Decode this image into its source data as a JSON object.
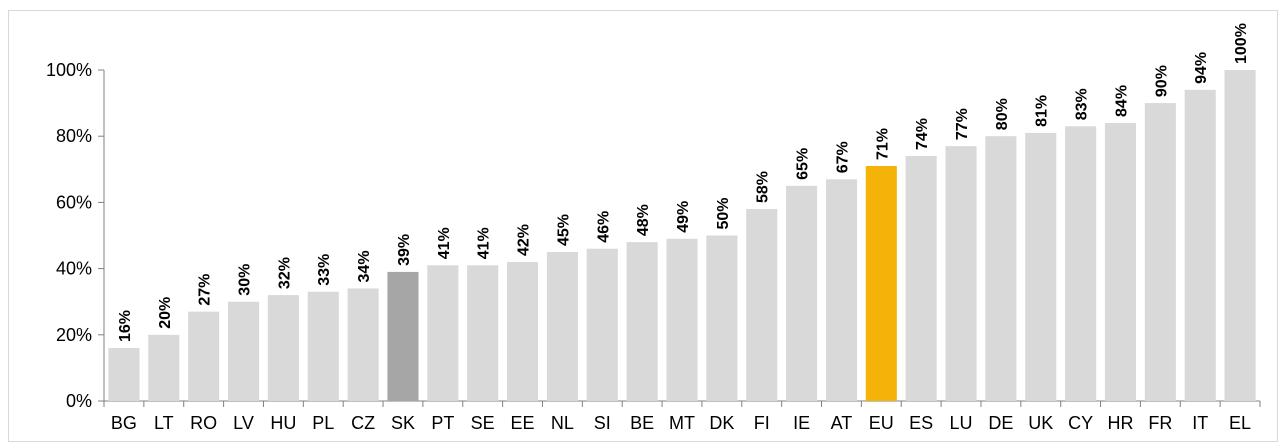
{
  "chart_data": {
    "type": "bar",
    "categories": [
      "BG",
      "LT",
      "RO",
      "LV",
      "HU",
      "PL",
      "CZ",
      "SK",
      "PT",
      "SE",
      "EE",
      "NL",
      "SI",
      "BE",
      "MT",
      "DK",
      "FI",
      "IE",
      "AT",
      "EU",
      "ES",
      "LU",
      "DE",
      "UK",
      "CY",
      "HR",
      "FR",
      "IT",
      "EL"
    ],
    "values": [
      16,
      20,
      27,
      30,
      32,
      33,
      34,
      39,
      41,
      41,
      42,
      45,
      46,
      48,
      49,
      50,
      58,
      65,
      67,
      71,
      74,
      77,
      80,
      81,
      83,
      84,
      90,
      94,
      100
    ],
    "data_labels": [
      "16%",
      "20%",
      "27%",
      "30%",
      "32%",
      "33%",
      "34%",
      "39%",
      "41%",
      "41%",
      "42%",
      "45%",
      "46%",
      "48%",
      "49%",
      "50%",
      "58%",
      "65%",
      "67%",
      "71%",
      "74%",
      "77%",
      "80%",
      "81%",
      "83%",
      "84%",
      "90%",
      "94%",
      "100%"
    ],
    "highlight": {
      "SK": "#a6a6a6",
      "EU": "#f5b30a"
    },
    "default_color": "#d9d9d9",
    "ylim": [
      0,
      100
    ],
    "yticks": [
      0,
      20,
      40,
      60,
      80,
      100
    ],
    "ytick_labels": [
      "0%",
      "20%",
      "40%",
      "60%",
      "80%",
      "100%"
    ],
    "grid": false,
    "legend": "none"
  }
}
